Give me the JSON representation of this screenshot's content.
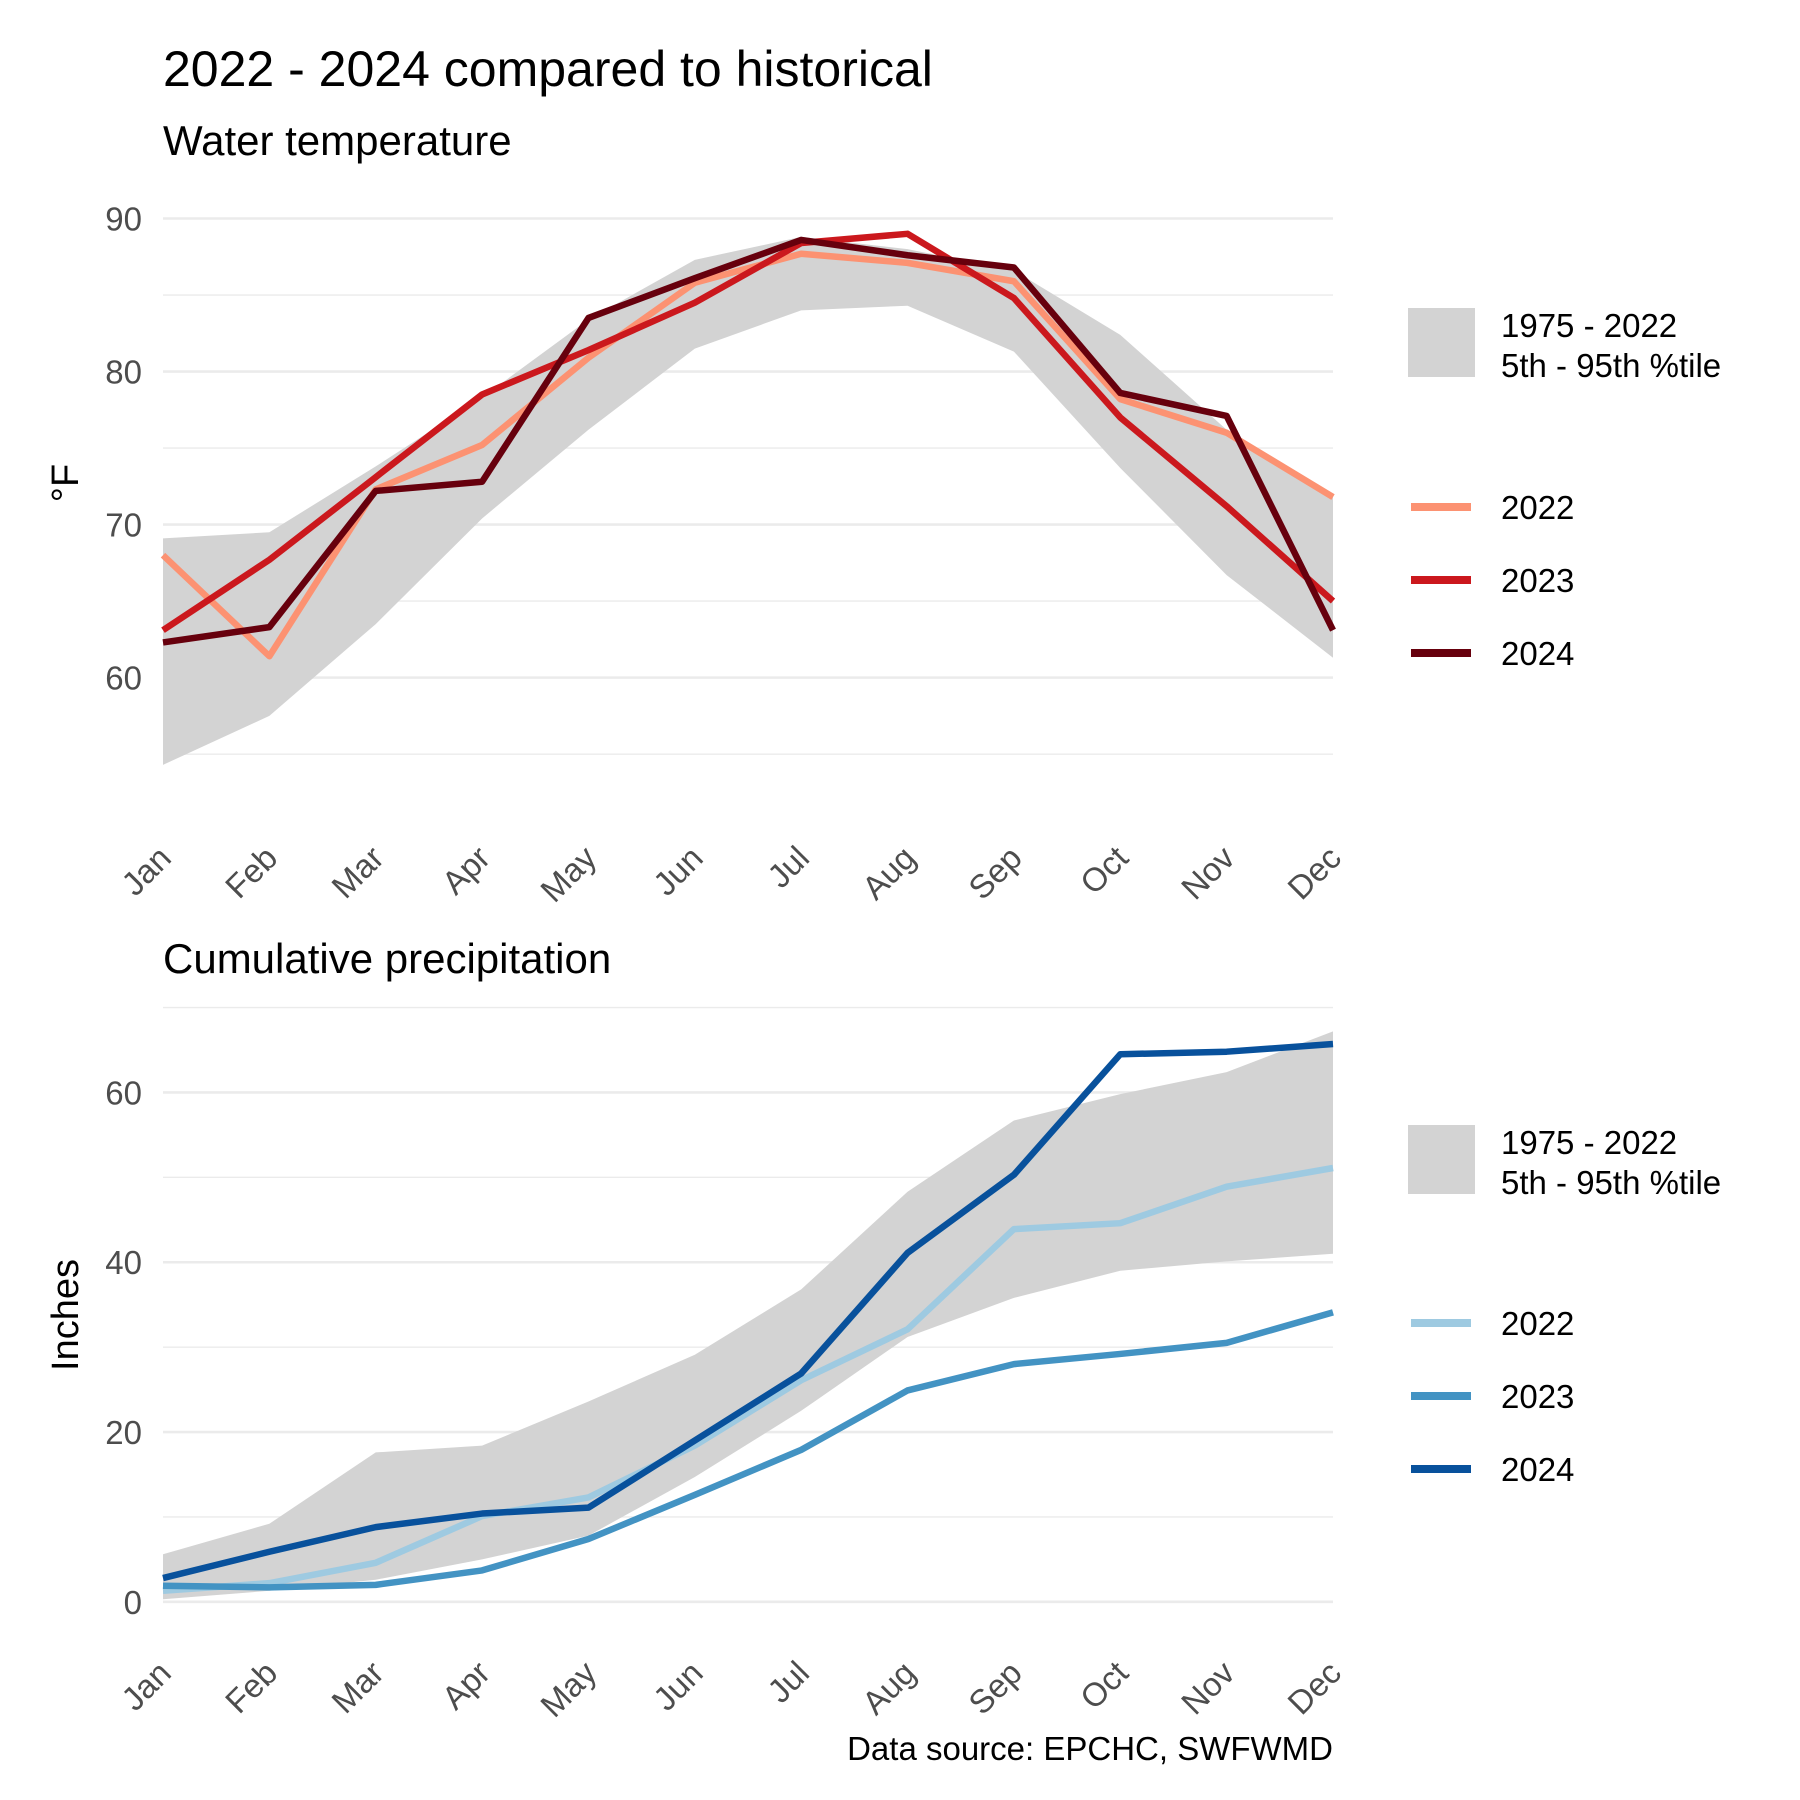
{
  "title": "2022 - 2024 compared to historical",
  "caption": "Data source: EPCHC, SWFWMD",
  "months": [
    "Jan",
    "Feb",
    "Mar",
    "Apr",
    "May",
    "Jun",
    "Jul",
    "Aug",
    "Sep",
    "Oct",
    "Nov",
    "Dec"
  ],
  "chart_data": [
    {
      "type": "line",
      "title": "Water temperature",
      "ylabel": "°F",
      "xlabel": "",
      "ylim": [
        52.2,
        93.3
      ],
      "yticks": [
        60,
        70,
        80,
        90
      ],
      "grid": true,
      "legend_position": "right",
      "band": {
        "name": "1975 - 2022",
        "name_line2": "5th - 95th %tile",
        "color": "#d3d3d3",
        "lower": [
          54.3,
          57.5,
          63.5,
          70.4,
          76.2,
          81.5,
          84.0,
          84.3,
          81.3,
          73.7,
          66.7,
          61.3
        ],
        "upper": [
          69.1,
          69.5,
          73.8,
          78.3,
          83.4,
          87.3,
          88.8,
          88.0,
          86.6,
          82.4,
          76.2,
          71.9
        ]
      },
      "series": [
        {
          "name": "2022",
          "color": "#fc9272",
          "values": [
            68.0,
            61.4,
            72.3,
            75.2,
            80.9,
            85.8,
            87.7,
            87.1,
            85.9,
            78.2,
            76.0,
            71.8
          ]
        },
        {
          "name": "2023",
          "color": "#cb181d",
          "values": [
            63.1,
            67.7,
            73.1,
            78.5,
            81.4,
            84.5,
            88.4,
            89.0,
            84.8,
            77.0,
            71.2,
            65.0
          ]
        },
        {
          "name": "2024",
          "color": "#67000d",
          "values": [
            62.3,
            63.3,
            72.2,
            72.8,
            83.5,
            86.1,
            88.6,
            87.6,
            86.8,
            78.6,
            77.1,
            63.1
          ]
        }
      ]
    },
    {
      "type": "line",
      "title": "Cumulative precipitation",
      "ylabel": "Inches",
      "xlabel": "",
      "ylim": [
        -3.2,
        70.3
      ],
      "yticks": [
        0,
        20,
        40,
        60
      ],
      "grid": true,
      "legend_position": "right",
      "band": {
        "name": "1975 - 2022",
        "name_line2": "5th - 95th %tile",
        "color": "#d3d3d3",
        "lower": [
          0.3,
          1.3,
          2.6,
          5.0,
          7.8,
          14.7,
          22.5,
          31.2,
          35.8,
          39.0,
          40.1,
          41.0
        ],
        "upper": [
          5.6,
          9.2,
          17.6,
          18.4,
          23.6,
          29.1,
          36.8,
          48.3,
          56.7,
          59.8,
          62.4,
          67.2
        ]
      },
      "series": [
        {
          "name": "2022",
          "color": "#9ecae1",
          "values": [
            1.3,
            2.2,
            4.6,
            10.1,
            12.3,
            18.4,
            26.1,
            32.1,
            43.9,
            44.6,
            48.9,
            51.1
          ]
        },
        {
          "name": "2023",
          "color": "#4393c3",
          "values": [
            1.9,
            1.7,
            2.0,
            3.7,
            7.4,
            12.6,
            17.9,
            24.9,
            28.0,
            29.2,
            30.5,
            34.1
          ]
        },
        {
          "name": "2024",
          "color": "#08519c",
          "values": [
            2.8,
            5.9,
            8.8,
            10.4,
            11.1,
            19.0,
            26.9,
            41.1,
            50.3,
            64.5,
            64.8,
            65.7
          ]
        }
      ]
    }
  ]
}
